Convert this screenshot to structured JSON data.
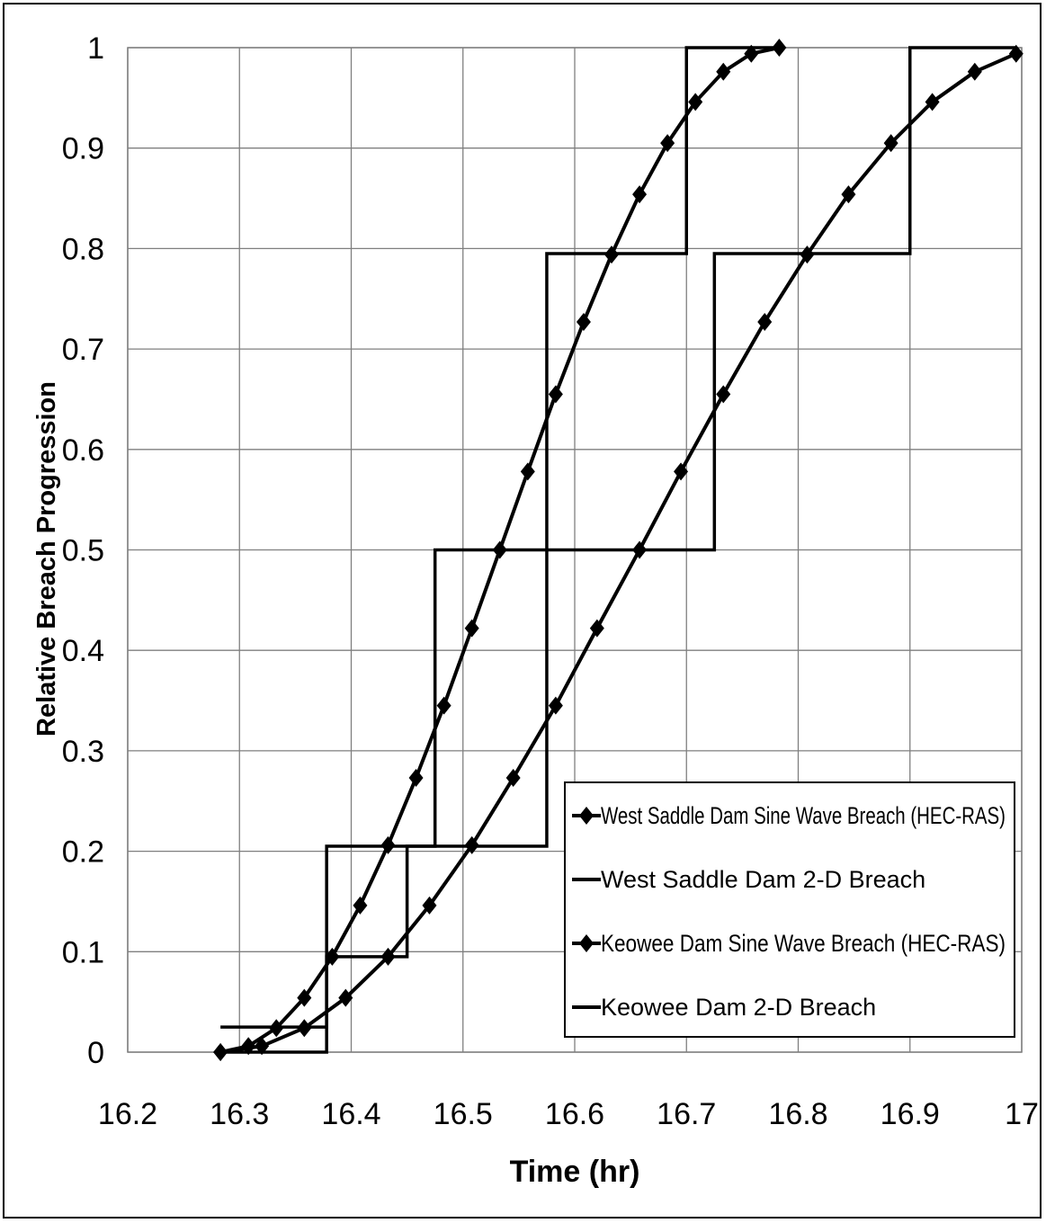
{
  "chart_data": {
    "type": "line",
    "title": "",
    "xlabel": "Time (hr)",
    "ylabel": "Relative Breach Progression",
    "xlim": [
      16.2,
      17
    ],
    "ylim": [
      0,
      1
    ],
    "xticks": [
      "16.2",
      "16.3",
      "16.4",
      "16.5",
      "16.6",
      "16.7",
      "16.8",
      "16.9",
      "17"
    ],
    "yticks": [
      "0",
      "0.1",
      "0.2",
      "0.3",
      "0.4",
      "0.5",
      "0.6",
      "0.7",
      "0.8",
      "0.9",
      "1"
    ],
    "grid": true,
    "legend_position": "bottom-right",
    "colors": {
      "line": "#000000",
      "grid": "#7f7f7f"
    },
    "series": [
      {
        "name": "West Saddle Dam Sine Wave Breach (HEC-RAS)",
        "style": "line-diamond",
        "x": [
          16.283,
          16.308,
          16.333,
          16.358,
          16.383,
          16.408,
          16.433,
          16.458,
          16.483,
          16.508,
          16.533,
          16.558,
          16.583,
          16.608,
          16.633,
          16.658,
          16.683,
          16.708,
          16.733,
          16.758,
          16.783
        ],
        "y": [
          0.0,
          0.006,
          0.024,
          0.054,
          0.095,
          0.146,
          0.206,
          0.273,
          0.345,
          0.422,
          0.5,
          0.578,
          0.655,
          0.727,
          0.794,
          0.854,
          0.905,
          0.946,
          0.976,
          0.994,
          1.0
        ]
      },
      {
        "name": "West Saddle Dam 2-D Breach",
        "style": "step",
        "x": [
          16.283,
          16.378,
          16.378,
          16.45,
          16.45,
          16.575,
          16.575,
          16.7,
          16.7,
          16.783
        ],
        "y": [
          0.025,
          0.025,
          0.095,
          0.095,
          0.205,
          0.205,
          0.795,
          0.795,
          1.0,
          1.0
        ]
      },
      {
        "name": "Keowee Dam Sine Wave Breach (HEC-RAS)",
        "style": "line-diamond",
        "x": [
          16.283,
          16.32,
          16.358,
          16.395,
          16.433,
          16.47,
          16.508,
          16.545,
          16.583,
          16.62,
          16.658,
          16.695,
          16.733,
          16.77,
          16.808,
          16.845,
          16.883,
          16.92,
          16.958,
          16.995
        ],
        "y": [
          0.0,
          0.006,
          0.024,
          0.054,
          0.095,
          0.146,
          0.206,
          0.273,
          0.345,
          0.422,
          0.5,
          0.578,
          0.655,
          0.727,
          0.794,
          0.854,
          0.905,
          0.946,
          0.976,
          0.994
        ]
      },
      {
        "name": "Keowee Dam 2-D Breach",
        "style": "step",
        "x": [
          16.283,
          16.378,
          16.378,
          16.475,
          16.475,
          16.725,
          16.725,
          16.9,
          16.9,
          16.995
        ],
        "y": [
          0.0,
          0.0,
          0.205,
          0.205,
          0.5,
          0.5,
          0.795,
          0.795,
          1.0,
          1.0
        ]
      }
    ]
  }
}
